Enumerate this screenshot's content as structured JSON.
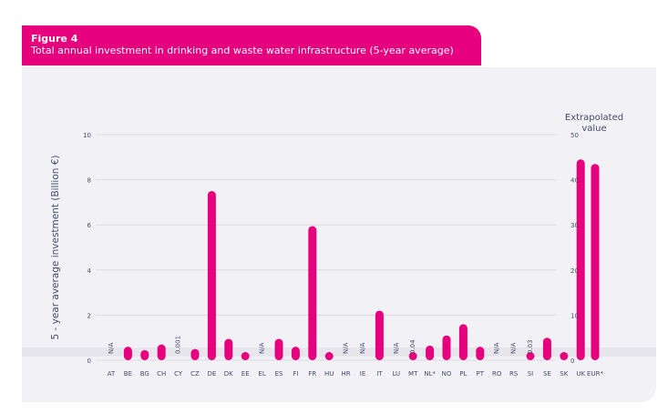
{
  "figure": {
    "label": "Figure 4",
    "title": "Total annual investment in drinking and waste water infrastructure (5-year average)"
  },
  "colors": {
    "bar": "#e6007e",
    "grid": "#d9d9e0",
    "text": "#444a6a",
    "header": "#e6007e"
  },
  "chart_data": {
    "type": "bar",
    "title": "",
    "ylabel": "5 - year average investment (Billion €)",
    "y2label": "Extrapolated value",
    "ylim": [
      0,
      10
    ],
    "y2lim": [
      0,
      50
    ],
    "yticks": [
      0,
      2,
      4,
      6,
      8,
      10
    ],
    "y2ticks": [
      0,
      10,
      20,
      30,
      40,
      50
    ],
    "grid": true,
    "categories": [
      "AT",
      "BE",
      "BG",
      "CH",
      "CY",
      "CZ",
      "DE",
      "DK",
      "EE",
      "EL",
      "ES",
      "FI",
      "FR",
      "HU",
      "HR",
      "IE",
      "IT",
      "LU",
      "MT",
      "NL*",
      "NO",
      "PL",
      "PT",
      "RO",
      "RS",
      "SI",
      "SE",
      "SK",
      "UK"
    ],
    "values": [
      null,
      0.6,
      0.45,
      0.7,
      0.001,
      0.5,
      7.5,
      0.95,
      0.15,
      null,
      0.95,
      0.6,
      5.95,
      0.15,
      null,
      null,
      2.2,
      null,
      0.04,
      0.65,
      1.1,
      1.6,
      0.6,
      null,
      null,
      0.03,
      1.0,
      0.2,
      8.9
    ],
    "value_labels": [
      "N/A",
      "",
      "",
      "",
      "0.001",
      "",
      "",
      "",
      "",
      "N/A",
      "",
      "",
      "",
      "",
      "N/A",
      "N/A",
      "",
      "N/A",
      "0.04",
      "",
      "",
      "",
      "",
      "N/A",
      "N/A",
      "0.03",
      "",
      "",
      ""
    ],
    "extrapolated": {
      "category": "EUR*",
      "value": 43.5
    }
  }
}
